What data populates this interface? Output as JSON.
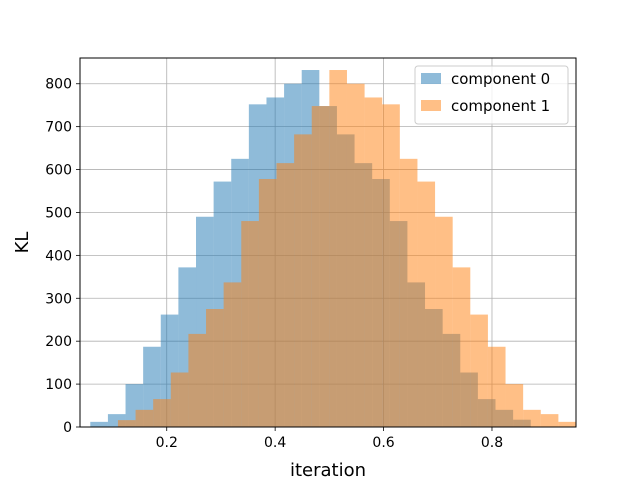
{
  "chart_data": {
    "type": "bar",
    "title": "",
    "xlabel": "iteration",
    "ylabel": "KL",
    "xlim": [
      0.04,
      0.955
    ],
    "ylim": [
      0,
      860
    ],
    "grid": true,
    "legend_placement": "top-right",
    "xticks": [
      0.2,
      0.4,
      0.6,
      0.8
    ],
    "xtick_labels": [
      "0.2",
      "0.4",
      "0.6",
      "0.8"
    ],
    "yticks": [
      0,
      100,
      200,
      300,
      400,
      500,
      600,
      700,
      800
    ],
    "ytick_labels": [
      "0",
      "100",
      "200",
      "300",
      "400",
      "500",
      "600",
      "700",
      "800"
    ],
    "series": [
      {
        "name": "component 0",
        "color": "#1f77b4",
        "opacity": 0.5,
        "bin_edges": [
          0.059,
          0.0915,
          0.124,
          0.1565,
          0.189,
          0.2215,
          0.254,
          0.2865,
          0.319,
          0.3515,
          0.384,
          0.4165,
          0.449,
          0.4815,
          0.514,
          0.5465,
          0.579,
          0.6115,
          0.644,
          0.6765,
          0.709,
          0.7415,
          0.774,
          0.8065,
          0.839,
          0.8715,
          0.904
        ],
        "values": [
          12,
          30,
          100,
          187,
          262,
          372,
          490,
          572,
          625,
          752,
          768,
          800,
          832,
          748,
          682,
          615,
          578,
          480,
          337,
          275,
          217,
          127,
          65,
          40,
          17,
          0
        ]
      },
      {
        "name": "component 1",
        "color": "#ff7f0e",
        "opacity": 0.5,
        "bin_edges": [
          0.11,
          0.1425,
          0.175,
          0.2075,
          0.24,
          0.2725,
          0.305,
          0.3375,
          0.37,
          0.4025,
          0.435,
          0.4675,
          0.5,
          0.5325,
          0.565,
          0.5975,
          0.63,
          0.6625,
          0.695,
          0.7275,
          0.76,
          0.7925,
          0.825,
          0.8575,
          0.89,
          0.9225,
          0.955
        ],
        "values": [
          16,
          40,
          65,
          127,
          217,
          275,
          337,
          480,
          578,
          615,
          682,
          748,
          832,
          800,
          768,
          752,
          625,
          572,
          490,
          372,
          262,
          187,
          100,
          40,
          30,
          12
        ]
      }
    ]
  }
}
